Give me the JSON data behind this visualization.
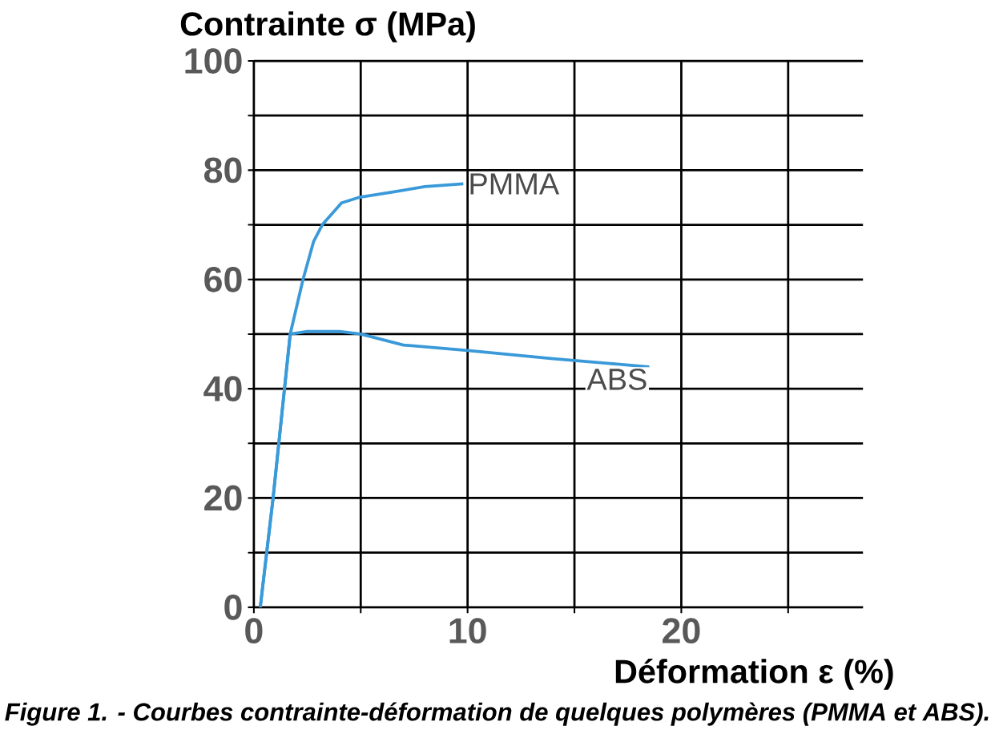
{
  "chart_data": {
    "type": "line",
    "title": "Contrainte σ (MPa)",
    "xlabel": "Déformation ε (%)",
    "annotations": [
      "Figure 1. - Courbes contrainte-déformation de quelques polymères (PMMA et ABS)."
    ],
    "xlim": [
      0,
      28.5
    ],
    "ylim": [
      0,
      100
    ],
    "xticks": [
      0,
      {
        "value": 5,
        "label": null
      },
      10,
      {
        "value": 15,
        "label": null
      },
      20,
      {
        "value": 25,
        "label": null
      }
    ],
    "yticks": [
      0,
      {
        "value": 10,
        "label": null
      },
      20,
      {
        "value": 30,
        "label": null
      },
      40,
      {
        "value": 50,
        "label": null
      },
      60,
      {
        "value": 70,
        "label": null
      },
      80,
      {
        "value": 90,
        "label": null
      },
      100
    ],
    "grid": true,
    "marker": "none",
    "line_style": "solid",
    "series": [
      {
        "name": "PMMA",
        "color": "#3a9ad9",
        "x": [
          0.3,
          0.6,
          0.9,
          1.3,
          1.7,
          2.3,
          2.8,
          3.2,
          4.1,
          4.9,
          6.5,
          8,
          9.8
        ],
        "values": [
          0,
          10,
          20,
          35,
          50,
          60,
          67,
          70,
          74,
          75,
          76,
          77,
          77.5
        ]
      },
      {
        "name": "ABS",
        "color": "#3a9ad9",
        "x": [
          0.3,
          0.6,
          0.9,
          1.3,
          1.7,
          2.5,
          4,
          5,
          7,
          10,
          14,
          17,
          18.5
        ],
        "values": [
          0,
          10,
          20,
          35,
          50,
          50.5,
          50.5,
          50,
          48,
          47,
          45.5,
          44.5,
          44
        ]
      }
    ]
  }
}
